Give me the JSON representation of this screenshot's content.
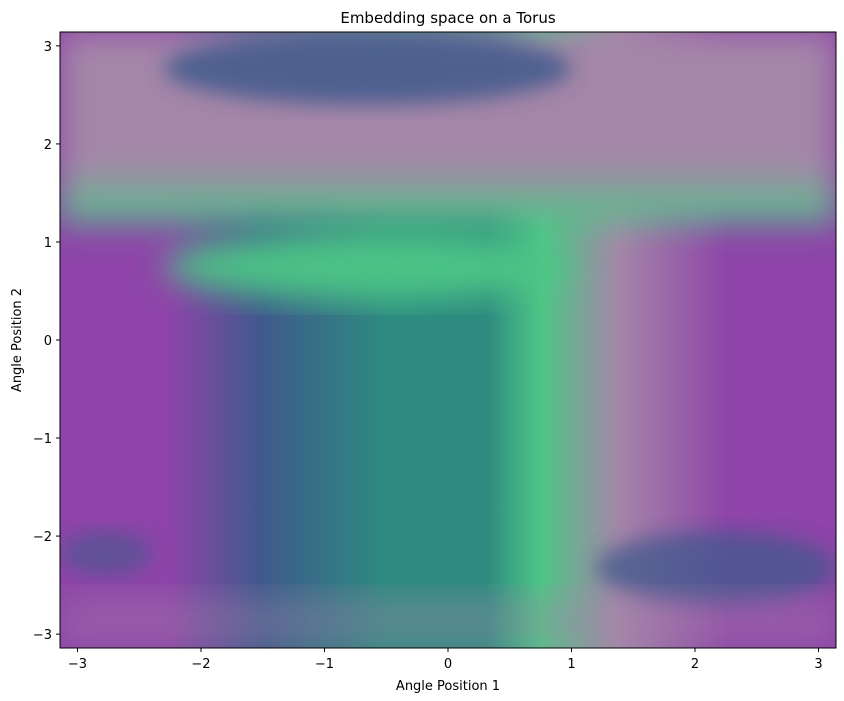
{
  "chart_data": {
    "type": "heatmap",
    "title": "Embedding space on a Torus",
    "xlabel": "Angle Position 1",
    "ylabel": "Angle Position 2",
    "xlim": [
      -3.1416,
      3.1416
    ],
    "ylim": [
      -3.1416,
      3.1416
    ],
    "x_ticks": [
      {
        "value": -3,
        "label": "−3"
      },
      {
        "value": -2,
        "label": "−2"
      },
      {
        "value": -1,
        "label": "−1"
      },
      {
        "value": 0,
        "label": "0"
      },
      {
        "value": 1,
        "label": "1"
      },
      {
        "value": 2,
        "label": "2"
      },
      {
        "value": 3,
        "label": "3"
      }
    ],
    "y_ticks": [
      {
        "value": -3,
        "label": "−3"
      },
      {
        "value": -2,
        "label": "−2"
      },
      {
        "value": -1,
        "label": "−1"
      },
      {
        "value": 0,
        "label": "0"
      },
      {
        "value": 1,
        "label": "1"
      },
      {
        "value": 2,
        "label": "2"
      },
      {
        "value": 3,
        "label": "3"
      }
    ],
    "grid": false,
    "colors": {
      "purple": "#8e44a8",
      "slate_blue": "#3f5a8c",
      "teal": "#2e8b80",
      "green": "#4dc686",
      "mauve": "#a486a8"
    },
    "regions": [
      {
        "name": "top-band",
        "color": "mauve",
        "y_range": [
          1.2,
          3.1416
        ]
      },
      {
        "name": "top-dark-blob",
        "color": "slate_blue",
        "x_range": [
          -2.3,
          1.0
        ],
        "y_range": [
          2.4,
          3.1416
        ]
      },
      {
        "name": "center-green-blob",
        "color": "green",
        "x_range": [
          -2.3,
          1.0
        ],
        "y_range": [
          0.4,
          1.1
        ]
      },
      {
        "name": "left-purple",
        "color": "purple",
        "x_range": [
          -3.1416,
          -2.2
        ],
        "y_range": [
          -1.95,
          1.1
        ]
      },
      {
        "name": "center-column",
        "color": "teal",
        "x_range": [
          -2.2,
          0.9
        ],
        "y_range": [
          -3.1416,
          0.4
        ]
      },
      {
        "name": "right-purple",
        "color": "purple",
        "x_range": [
          0.9,
          3.1416
        ],
        "y_range": [
          -1.95,
          1.1
        ]
      },
      {
        "name": "bottom-right-blob",
        "color": "slate_blue",
        "x_range": [
          1.2,
          3.1416
        ],
        "y_range": [
          -2.7,
          -1.95
        ]
      },
      {
        "name": "bottom-left-blob",
        "color": "slate_blue",
        "x_range": [
          -3.1416,
          -2.4
        ],
        "y_range": [
          -2.4,
          -1.95
        ]
      }
    ]
  }
}
